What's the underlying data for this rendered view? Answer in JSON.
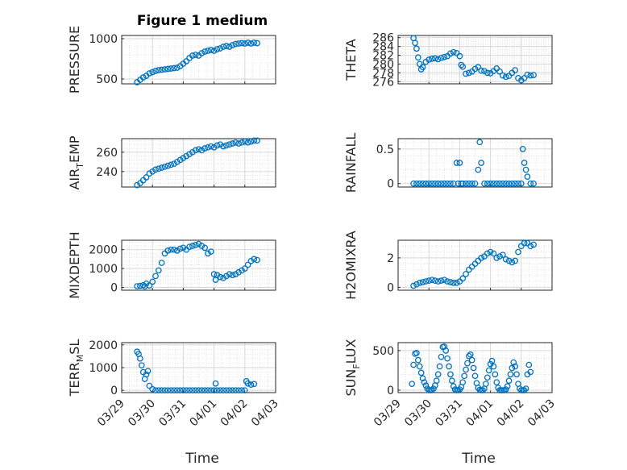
{
  "figure": {
    "title": "Figure 1 medium",
    "xlabel": "Time",
    "marker_color": "#0072BD",
    "grid": true,
    "x_tick_labels": [
      "03/29",
      "03/30",
      "03/31",
      "04/01",
      "04/02",
      "04/03"
    ],
    "x_ticks": [
      29,
      30,
      31,
      32,
      33,
      34
    ]
  },
  "chart_data": [
    {
      "type": "scatter",
      "panel": "pressure",
      "ylabel": "PRESSURE",
      "ylabel_sub": "",
      "ylabel_tail": "",
      "xlim": [
        29,
        34
      ],
      "ylim": [
        440,
        1040
      ],
      "yticks": [
        500,
        1000
      ],
      "x": [
        29.5,
        29.6,
        29.7,
        29.8,
        29.9,
        30.0,
        30.1,
        30.2,
        30.3,
        30.4,
        30.5,
        30.6,
        30.7,
        30.8,
        30.9,
        31.0,
        31.1,
        31.2,
        31.3,
        31.4,
        31.5,
        31.6,
        31.7,
        31.8,
        31.9,
        32.0,
        32.1,
        32.2,
        32.3,
        32.4,
        32.5,
        32.6,
        32.7,
        32.8,
        32.9,
        33.0,
        33.1,
        33.2,
        33.3,
        33.4
      ],
      "y": [
        460,
        490,
        520,
        540,
        570,
        585,
        600,
        610,
        615,
        620,
        625,
        630,
        635,
        640,
        660,
        690,
        720,
        760,
        790,
        800,
        790,
        820,
        840,
        850,
        860,
        850,
        870,
        880,
        900,
        910,
        900,
        920,
        935,
        940,
        945,
        940,
        950,
        940,
        950,
        945
      ]
    },
    {
      "type": "scatter",
      "panel": "theta",
      "ylabel": "THETA",
      "ylabel_sub": "",
      "ylabel_tail": "",
      "xlim": [
        29,
        34
      ],
      "ylim": [
        275.5,
        286.5
      ],
      "yticks": [
        276,
        278,
        280,
        282,
        284,
        286
      ],
      "x": [
        29.5,
        29.55,
        29.6,
        29.65,
        29.7,
        29.75,
        29.8,
        29.9,
        30.0,
        30.1,
        30.2,
        30.3,
        30.4,
        30.5,
        30.6,
        30.7,
        30.8,
        30.9,
        31.0,
        31.05,
        31.1,
        31.2,
        31.3,
        31.4,
        31.5,
        31.6,
        31.7,
        31.8,
        31.9,
        32.0,
        32.1,
        32.2,
        32.3,
        32.4,
        32.5,
        32.6,
        32.7,
        32.8,
        32.9,
        33.0,
        33.1,
        33.2,
        33.3,
        33.4
      ],
      "y": [
        285.9,
        284.8,
        283.5,
        281.5,
        280.0,
        278.8,
        279.3,
        280.5,
        281.0,
        281.2,
        281.3,
        281.1,
        281.4,
        281.6,
        281.8,
        282.4,
        282.7,
        282.5,
        281.8,
        279.8,
        279.4,
        277.8,
        278.0,
        278.3,
        278.9,
        279.3,
        278.5,
        278.4,
        278.0,
        277.9,
        278.4,
        279.0,
        278.3,
        277.4,
        277.1,
        277.3,
        278.0,
        278.6,
        276.8,
        276.3,
        276.8,
        277.6,
        277.4,
        277.5
      ]
    },
    {
      "type": "scatter",
      "panel": "air_temp",
      "ylabel": "AIR",
      "ylabel_sub": "T",
      "ylabel_tail": "EMP",
      "xlim": [
        29,
        34
      ],
      "ylim": [
        224,
        274
      ],
      "yticks": [
        240,
        260
      ],
      "x": [
        29.5,
        29.6,
        29.7,
        29.8,
        29.9,
        30.0,
        30.1,
        30.2,
        30.3,
        30.4,
        30.5,
        30.6,
        30.7,
        30.8,
        30.9,
        31.0,
        31.1,
        31.2,
        31.3,
        31.4,
        31.5,
        31.6,
        31.7,
        31.8,
        31.9,
        32.0,
        32.1,
        32.2,
        32.3,
        32.4,
        32.5,
        32.6,
        32.7,
        32.8,
        32.9,
        33.0,
        33.1,
        33.2,
        33.3,
        33.4
      ],
      "y": [
        226,
        228,
        231,
        234,
        238,
        240,
        242,
        243,
        244,
        245,
        246,
        247,
        248,
        250,
        252,
        254,
        256,
        258,
        260,
        262,
        263,
        262,
        264,
        265,
        266,
        265,
        267,
        268,
        266,
        267,
        268,
        269,
        270,
        269,
        270,
        271,
        270,
        271,
        272,
        272
      ]
    },
    {
      "type": "scatter",
      "panel": "rainfall",
      "ylabel": "RAINFALL",
      "ylabel_sub": "",
      "ylabel_tail": "",
      "xlim": [
        29,
        34
      ],
      "ylim": [
        -0.05,
        0.65
      ],
      "yticks": [
        0,
        0.5
      ],
      "x": [
        29.5,
        29.6,
        29.7,
        29.8,
        29.9,
        30.0,
        30.1,
        30.2,
        30.3,
        30.4,
        30.5,
        30.6,
        30.7,
        30.8,
        30.9,
        30.95,
        31.0,
        31.05,
        31.1,
        31.2,
        31.3,
        31.4,
        31.5,
        31.6,
        31.65,
        31.7,
        31.8,
        31.9,
        32.0,
        32.1,
        32.2,
        32.3,
        32.4,
        32.5,
        32.6,
        32.7,
        32.8,
        32.9,
        33.0,
        33.05,
        33.1,
        33.15,
        33.2,
        33.3,
        33.4
      ],
      "y": [
        0,
        0,
        0,
        0,
        0,
        0,
        0,
        0,
        0,
        0,
        0,
        0,
        0,
        0,
        0.3,
        0,
        0.3,
        0,
        0,
        0,
        0,
        0,
        0,
        0.2,
        0.6,
        0.3,
        0,
        0,
        0,
        0,
        0,
        0,
        0,
        0,
        0,
        0,
        0,
        0,
        0,
        0.5,
        0.3,
        0.2,
        0.1,
        0,
        0
      ]
    },
    {
      "type": "scatter",
      "panel": "mixdepth",
      "ylabel": "MIXDEPTH",
      "ylabel_sub": "",
      "ylabel_tail": "",
      "xlim": [
        29,
        34
      ],
      "ylim": [
        -150,
        2500
      ],
      "yticks": [
        0,
        1000,
        2000
      ],
      "x": [
        29.5,
        29.6,
        29.7,
        29.75,
        29.8,
        29.9,
        30.0,
        30.1,
        30.2,
        30.3,
        30.4,
        30.5,
        30.6,
        30.7,
        30.8,
        30.9,
        31.0,
        31.1,
        31.2,
        31.3,
        31.4,
        31.5,
        31.6,
        31.7,
        31.8,
        31.9,
        32.0,
        32.05,
        32.1,
        32.2,
        32.3,
        32.4,
        32.5,
        32.6,
        32.7,
        32.8,
        32.9,
        33.0,
        33.1,
        33.2,
        33.3,
        33.4
      ],
      "y": [
        60,
        80,
        120,
        50,
        200,
        100,
        300,
        600,
        900,
        1300,
        1800,
        1950,
        2000,
        2000,
        1950,
        2050,
        2100,
        2000,
        2150,
        2200,
        2250,
        2300,
        2200,
        2100,
        1800,
        1900,
        700,
        400,
        650,
        550,
        500,
        600,
        700,
        650,
        700,
        800,
        900,
        1000,
        1200,
        1400,
        1500,
        1450
      ]
    },
    {
      "type": "scatter",
      "panel": "h2omixra",
      "ylabel": "H2OMIXRA",
      "ylabel_sub": "",
      "ylabel_tail": "",
      "xlim": [
        29,
        34
      ],
      "ylim": [
        -0.2,
        3.2
      ],
      "yticks": [
        0,
        2
      ],
      "x": [
        29.5,
        29.6,
        29.7,
        29.8,
        29.9,
        30.0,
        30.1,
        30.2,
        30.3,
        30.4,
        30.5,
        30.6,
        30.7,
        30.8,
        30.9,
        31.0,
        31.1,
        31.2,
        31.3,
        31.4,
        31.5,
        31.6,
        31.7,
        31.8,
        31.9,
        32.0,
        32.1,
        32.2,
        32.3,
        32.4,
        32.5,
        32.6,
        32.7,
        32.8,
        32.9,
        33.0,
        33.1,
        33.2,
        33.3,
        33.4
      ],
      "y": [
        0.1,
        0.2,
        0.3,
        0.35,
        0.4,
        0.45,
        0.5,
        0.45,
        0.4,
        0.45,
        0.5,
        0.4,
        0.35,
        0.3,
        0.3,
        0.4,
        0.6,
        0.9,
        1.2,
        1.4,
        1.6,
        1.8,
        2.0,
        2.1,
        2.3,
        2.4,
        2.3,
        2.0,
        2.1,
        2.2,
        1.9,
        1.8,
        1.7,
        1.8,
        2.4,
        2.8,
        3.0,
        3.0,
        2.8,
        2.9
      ]
    },
    {
      "type": "scatter",
      "panel": "terr_msl",
      "ylabel": "TERR",
      "ylabel_sub": "M",
      "ylabel_tail": "SL",
      "xlim": [
        29,
        34
      ],
      "ylim": [
        -100,
        2100
      ],
      "yticks": [
        0,
        1000,
        2000
      ],
      "x": [
        29.5,
        29.55,
        29.6,
        29.65,
        29.7,
        29.75,
        29.8,
        29.85,
        29.9,
        30.0,
        30.1,
        30.2,
        30.3,
        30.4,
        30.5,
        30.6,
        30.7,
        30.8,
        30.9,
        31.0,
        31.1,
        31.2,
        31.3,
        31.4,
        31.5,
        31.6,
        31.7,
        31.8,
        31.9,
        32.0,
        32.05,
        32.1,
        32.2,
        32.3,
        32.4,
        32.5,
        32.6,
        32.7,
        32.8,
        32.9,
        33.0,
        33.05,
        33.1,
        33.2,
        33.3
      ],
      "y": [
        1700,
        1600,
        1400,
        1100,
        800,
        500,
        700,
        850,
        200,
        50,
        0,
        0,
        0,
        0,
        0,
        0,
        0,
        0,
        0,
        0,
        0,
        0,
        0,
        0,
        0,
        0,
        0,
        0,
        0,
        0,
        300,
        0,
        0,
        0,
        0,
        0,
        0,
        0,
        0,
        0,
        0,
        400,
        300,
        250,
        280
      ]
    },
    {
      "type": "scatter",
      "panel": "sun_flux",
      "ylabel": "SUN",
      "ylabel_sub": "F",
      "ylabel_tail": "LUX",
      "xlim": [
        29,
        34
      ],
      "ylim": [
        -30,
        600
      ],
      "yticks": [
        0,
        500
      ],
      "x": [
        29.45,
        29.5,
        29.55,
        29.6,
        29.65,
        29.7,
        29.75,
        29.8,
        29.85,
        29.9,
        29.95,
        30.0,
        30.05,
        30.1,
        30.15,
        30.2,
        30.25,
        30.3,
        30.35,
        30.4,
        30.45,
        30.5,
        30.55,
        30.6,
        30.65,
        30.7,
        30.75,
        30.8,
        30.85,
        30.9,
        30.95,
        31.0,
        31.05,
        31.1,
        31.15,
        31.2,
        31.25,
        31.3,
        31.35,
        31.4,
        31.45,
        31.5,
        31.55,
        31.6,
        31.65,
        31.7,
        31.75,
        31.8,
        31.85,
        31.9,
        31.95,
        32.0,
        32.05,
        32.1,
        32.15,
        32.2,
        32.25,
        32.3,
        32.35,
        32.4,
        32.45,
        32.5,
        32.55,
        32.6,
        32.65,
        32.7,
        32.75,
        32.8,
        32.85,
        32.9,
        32.95,
        33.0,
        33.05,
        33.1,
        33.15,
        33.2,
        33.25,
        33.3
      ],
      "y": [
        80,
        320,
        460,
        470,
        380,
        300,
        220,
        150,
        100,
        60,
        20,
        0,
        0,
        0,
        20,
        60,
        120,
        200,
        300,
        420,
        545,
        550,
        500,
        400,
        300,
        200,
        120,
        50,
        10,
        0,
        0,
        10,
        40,
        100,
        180,
        260,
        340,
        430,
        450,
        380,
        280,
        180,
        90,
        30,
        5,
        0,
        0,
        20,
        80,
        160,
        250,
        330,
        370,
        300,
        200,
        100,
        30,
        0,
        0,
        0,
        0,
        10,
        50,
        120,
        200,
        280,
        350,
        300,
        200,
        80,
        20,
        0,
        0,
        0,
        20,
        200,
        320,
        230
      ]
    }
  ]
}
